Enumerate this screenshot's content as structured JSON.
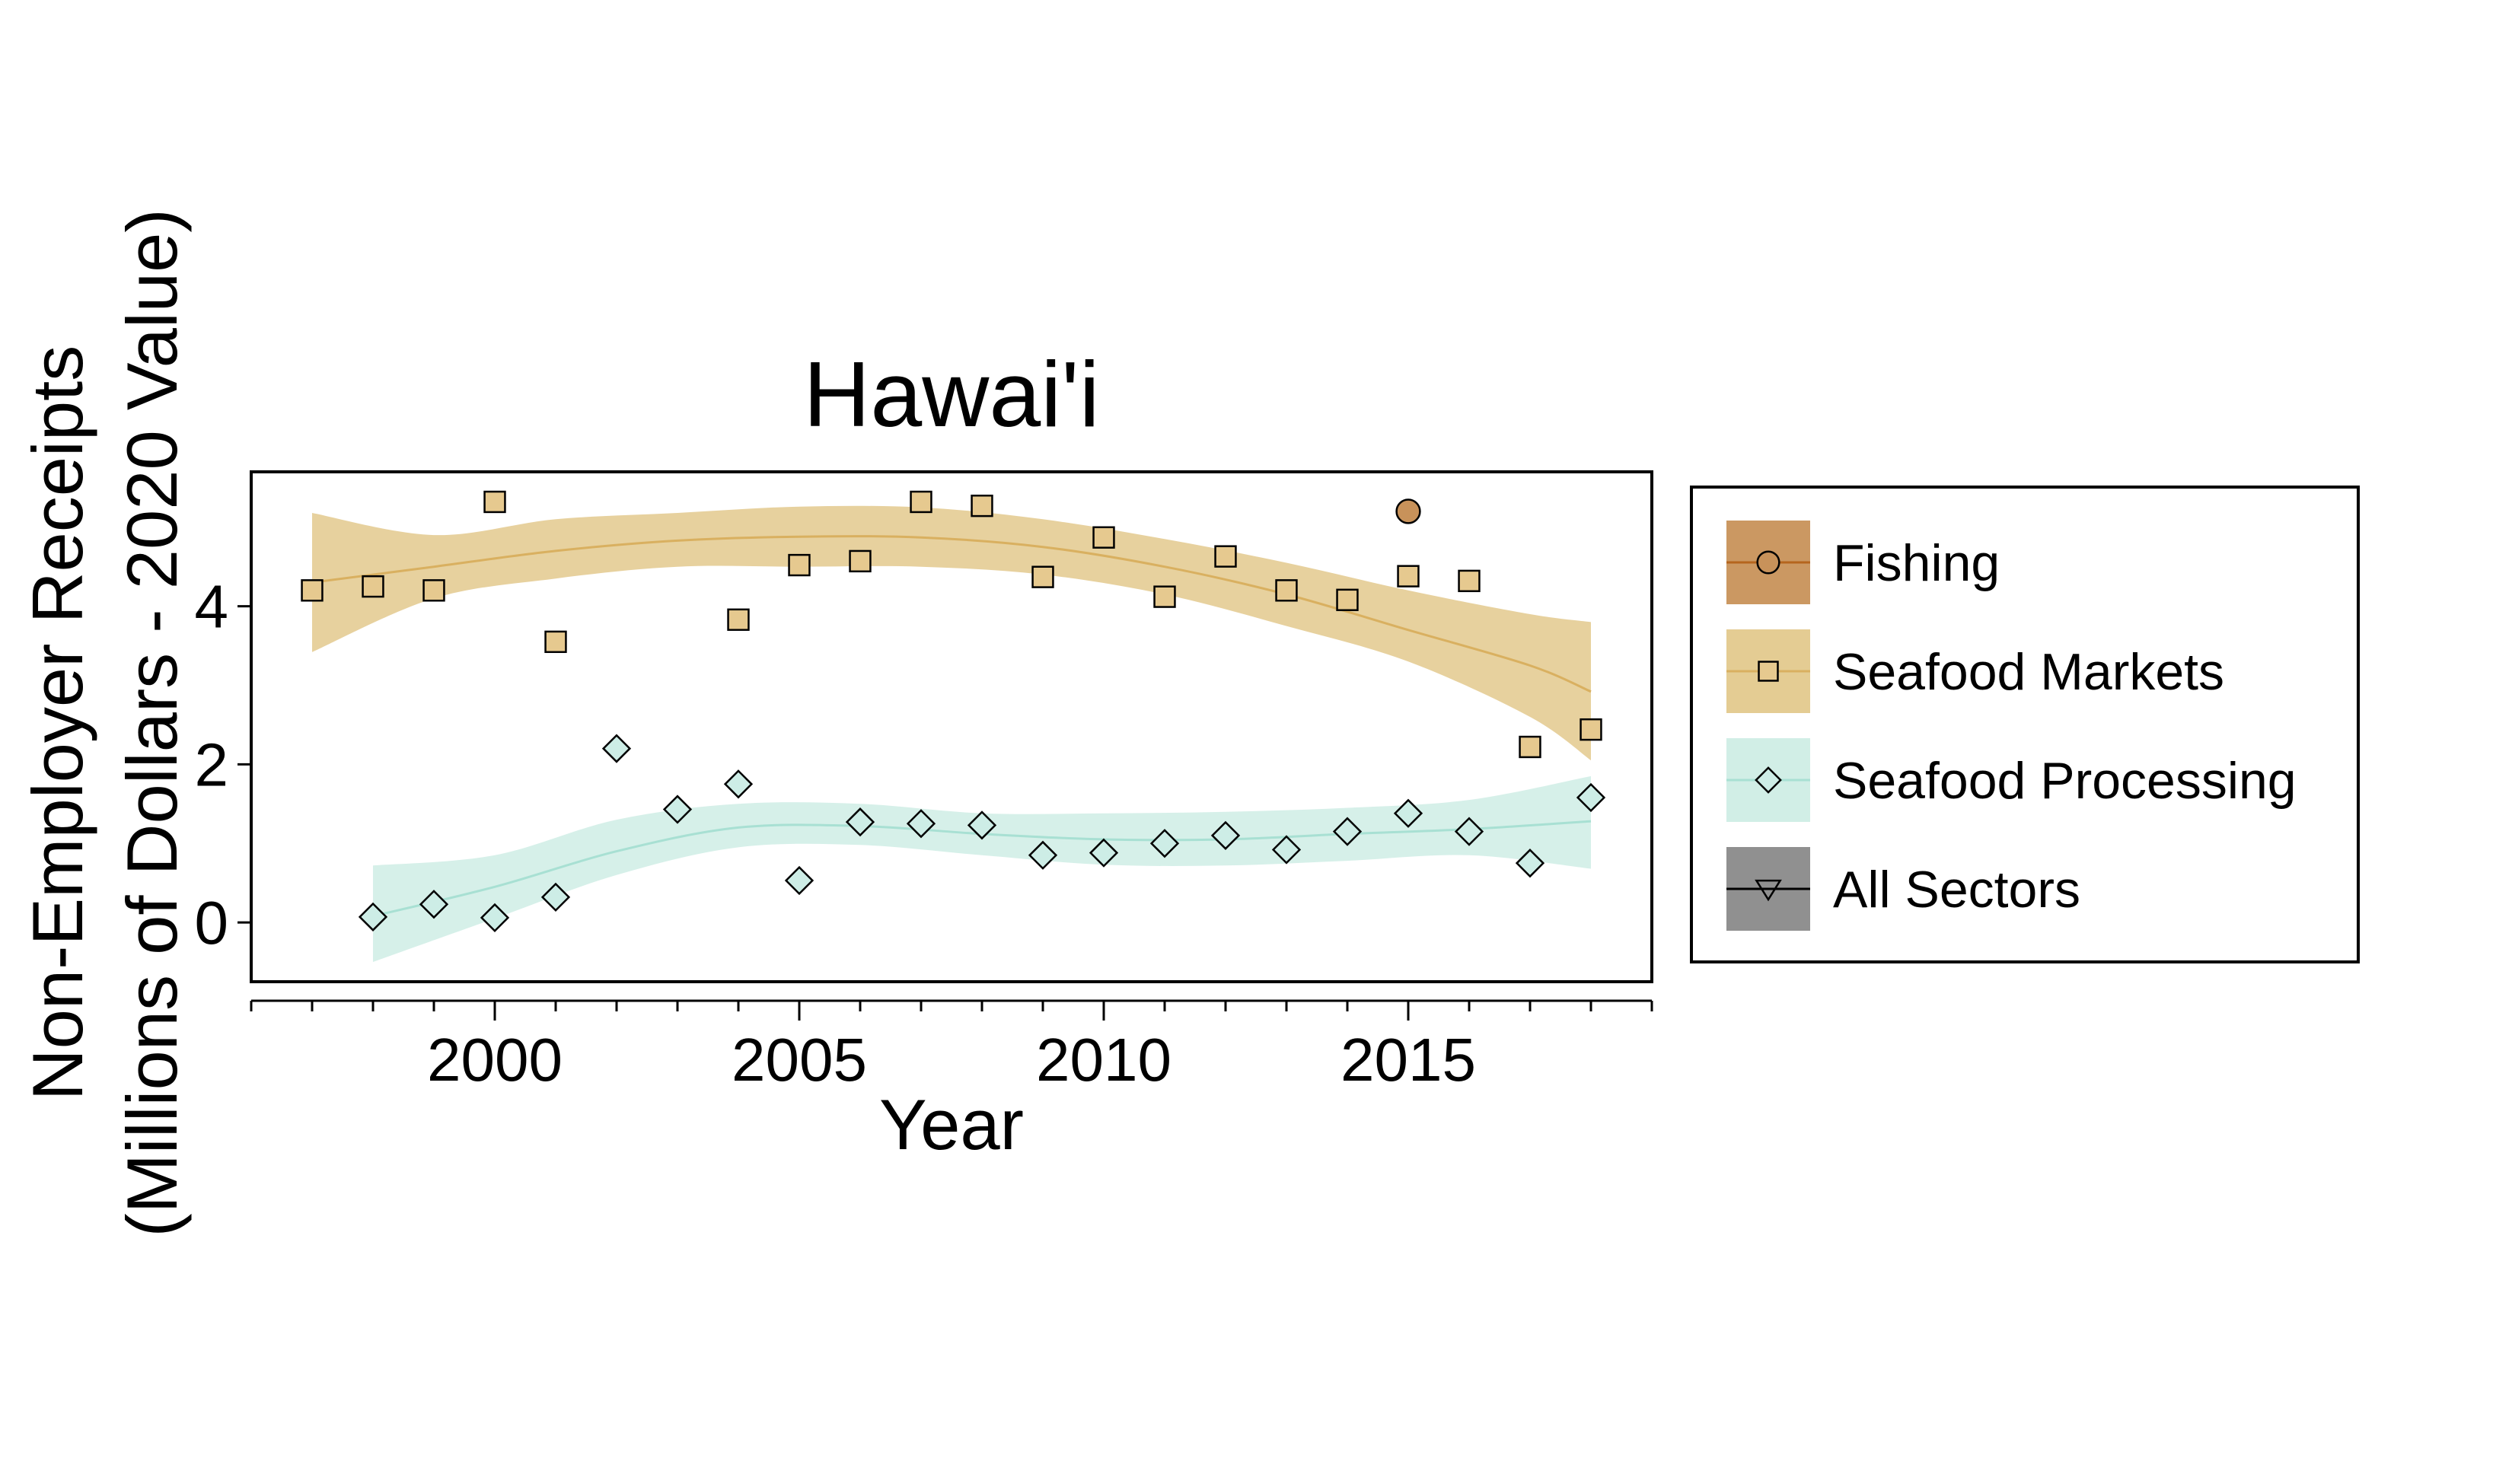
{
  "chart_data": {
    "type": "scatter",
    "title": "Hawai'i",
    "xlabel": "Year",
    "ylabel": [
      "Non-Employer Receipts",
      "(Millions of Dollars - 2020 Value)"
    ],
    "xlim": [
      1996,
      2019
    ],
    "ylim": [
      -0.75,
      5.7
    ],
    "x_major_ticks": [
      2000,
      2005,
      2010,
      2015
    ],
    "x_tick_labels": [
      "2000",
      "2005",
      "2010",
      "2015"
    ],
    "x_minor_ticks": [
      1996,
      1997,
      1998,
      1999,
      2001,
      2002,
      2003,
      2004,
      2006,
      2007,
      2008,
      2009,
      2011,
      2012,
      2013,
      2014,
      2016,
      2017,
      2018,
      2019
    ],
    "y_ticks": [
      0,
      2,
      4
    ],
    "y_tick_labels": [
      "0",
      "2",
      "4"
    ],
    "grid": false,
    "legend_position": "right",
    "series": [
      {
        "name": "Fishing",
        "marker": "circle",
        "color": "#C8925A",
        "band_color": "#C8925A",
        "legend_line_color": "#B5651D",
        "x": [
          2015
        ],
        "y": [
          5.2
        ],
        "trend": null
      },
      {
        "name": "Seafood Markets",
        "marker": "square",
        "color": "#E6C98F",
        "band_color": "#E3C98D",
        "legend_line_color": "#D9B060",
        "x": [
          1997,
          1998,
          1999,
          2000,
          2001,
          2004,
          2005,
          2006,
          2007,
          2008,
          2009,
          2010,
          2011,
          2012,
          2013,
          2014,
          2015,
          2016,
          2017,
          2018
        ],
        "y": [
          4.2,
          4.25,
          4.2,
          5.32,
          3.55,
          3.83,
          4.52,
          4.57,
          5.32,
          5.27,
          4.37,
          4.87,
          4.12,
          4.63,
          4.2,
          4.08,
          4.38,
          4.32,
          2.22,
          2.44
        ],
        "trend": {
          "x": [
            1997,
            1999,
            2001,
            2003,
            2005,
            2007,
            2009,
            2011,
            2013,
            2015,
            2017,
            2018
          ],
          "y": [
            4.3,
            4.5,
            4.7,
            4.83,
            4.88,
            4.87,
            4.75,
            4.5,
            4.15,
            3.7,
            3.25,
            2.92
          ],
          "lower": [
            3.42,
            4.1,
            4.35,
            4.5,
            4.5,
            4.5,
            4.4,
            4.15,
            3.75,
            3.3,
            2.6,
            2.05
          ],
          "upper": [
            5.18,
            4.9,
            5.1,
            5.18,
            5.26,
            5.25,
            5.1,
            4.85,
            4.55,
            4.2,
            3.9,
            3.8
          ]
        }
      },
      {
        "name": "Seafood Processing",
        "marker": "diamond",
        "color": "#CDEDE6",
        "band_color": "#CFEDE5",
        "legend_line_color": "#A8E0D3",
        "x": [
          1998,
          1999,
          2000,
          2001,
          2002,
          2003,
          2004,
          2005,
          2006,
          2007,
          2008,
          2009,
          2010,
          2011,
          2012,
          2013,
          2014,
          2015,
          2016,
          2017,
          2018
        ],
        "y": [
          0.07,
          0.23,
          0.06,
          0.32,
          2.2,
          1.43,
          1.75,
          0.53,
          1.27,
          1.25,
          1.23,
          0.85,
          0.88,
          1.0,
          1.1,
          0.92,
          1.15,
          1.38,
          1.15,
          0.75,
          1.58
        ],
        "trend": {
          "x": [
            1998,
            2000,
            2002,
            2004,
            2006,
            2008,
            2010,
            2012,
            2014,
            2016,
            2018
          ],
          "y": [
            0.08,
            0.45,
            0.9,
            1.2,
            1.22,
            1.12,
            1.05,
            1.05,
            1.12,
            1.18,
            1.28
          ],
          "lower": [
            -0.5,
            0.05,
            0.6,
            0.95,
            0.98,
            0.85,
            0.73,
            0.72,
            0.78,
            0.85,
            0.68
          ],
          "upper": [
            0.72,
            0.85,
            1.3,
            1.5,
            1.5,
            1.38,
            1.38,
            1.4,
            1.45,
            1.55,
            1.85
          ]
        }
      },
      {
        "name": "All Sectors",
        "marker": "triangle-down",
        "color": "#909090",
        "band_color": "#909090",
        "legend_line_color": "#000000",
        "x": [],
        "y": [],
        "trend": null
      }
    ]
  }
}
